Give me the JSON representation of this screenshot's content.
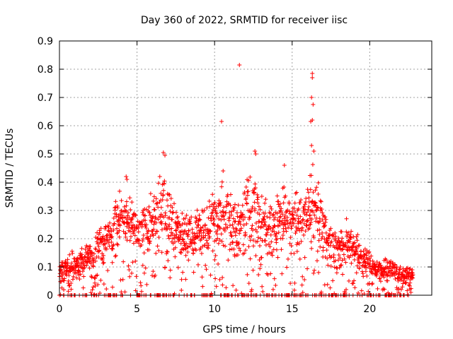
{
  "chart_data": {
    "type": "scatter",
    "title": "Day 360 of 2022, SRMTID for receiver iisc",
    "xlabel": "GPS time / hours",
    "ylabel": "SRMTID / TECUs",
    "xlim": [
      0,
      24
    ],
    "ylim": [
      0,
      0.9
    ],
    "xticks": [
      0,
      5,
      10,
      15,
      20
    ],
    "xtick_labels": [
      "0",
      "5",
      "10",
      "15",
      "20"
    ],
    "yticks": [
      0,
      0.1,
      0.2,
      0.3,
      0.4,
      0.5,
      0.6,
      0.7,
      0.8,
      0.9
    ],
    "ytick_labels": [
      "0",
      "0.1",
      "0.2",
      "0.3",
      "0.4",
      "0.5",
      "0.6",
      "0.7",
      "0.8",
      "0.9"
    ],
    "grid": true,
    "marker": "+",
    "series": [
      {
        "name": "SRMTID",
        "color": "#ff0000",
        "data_envelope": [
          {
            "x": 0.0,
            "y_typical": 0.06,
            "y_peak": 0.14
          },
          {
            "x": 1.0,
            "y_typical": 0.1,
            "y_peak": 0.17
          },
          {
            "x": 2.0,
            "y_typical": 0.13,
            "y_peak": 0.2
          },
          {
            "x": 3.0,
            "y_typical": 0.17,
            "y_peak": 0.3
          },
          {
            "x": 3.5,
            "y_typical": 0.2,
            "y_peak": 0.37
          },
          {
            "x": 4.0,
            "y_typical": 0.3,
            "y_peak": 0.42
          },
          {
            "x": 5.0,
            "y_typical": 0.25,
            "y_peak": 0.33
          },
          {
            "x": 6.0,
            "y_typical": 0.25,
            "y_peak": 0.39
          },
          {
            "x": 6.7,
            "y_typical": 0.3,
            "y_peak": 0.5
          },
          {
            "x": 7.5,
            "y_typical": 0.22,
            "y_peak": 0.34
          },
          {
            "x": 8.5,
            "y_typical": 0.2,
            "y_peak": 0.32
          },
          {
            "x": 9.5,
            "y_typical": 0.22,
            "y_peak": 0.36
          },
          {
            "x": 10.5,
            "y_typical": 0.22,
            "y_peak": 0.44
          },
          {
            "x": 11.5,
            "y_typical": 0.2,
            "y_peak": 0.38
          },
          {
            "x": 12.5,
            "y_typical": 0.22,
            "y_peak": 0.52
          },
          {
            "x": 13.5,
            "y_typical": 0.2,
            "y_peak": 0.34
          },
          {
            "x": 14.5,
            "y_typical": 0.22,
            "y_peak": 0.45
          },
          {
            "x": 15.5,
            "y_typical": 0.2,
            "y_peak": 0.4
          },
          {
            "x": 16.3,
            "y_typical": 0.25,
            "y_peak": 0.51
          },
          {
            "x": 17.5,
            "y_typical": 0.18,
            "y_peak": 0.28
          },
          {
            "x": 18.5,
            "y_typical": 0.18,
            "y_peak": 0.28
          },
          {
            "x": 19.5,
            "y_typical": 0.14,
            "y_peak": 0.2
          },
          {
            "x": 20.5,
            "y_typical": 0.08,
            "y_peak": 0.13
          },
          {
            "x": 21.5,
            "y_typical": 0.07,
            "y_peak": 0.15
          },
          {
            "x": 22.6,
            "y_typical": 0.05,
            "y_peak": 0.11
          }
        ],
        "zero_points_x_range": [
          0.0,
          22.8
        ],
        "outliers": [
          {
            "x": 11.6,
            "y": 0.815
          },
          {
            "x": 16.3,
            "y": 0.785
          },
          {
            "x": 16.3,
            "y": 0.77
          },
          {
            "x": 16.25,
            "y": 0.7
          },
          {
            "x": 16.35,
            "y": 0.675
          },
          {
            "x": 16.3,
            "y": 0.62
          },
          {
            "x": 16.2,
            "y": 0.615
          },
          {
            "x": 16.25,
            "y": 0.53
          },
          {
            "x": 16.4,
            "y": 0.51
          },
          {
            "x": 10.45,
            "y": 0.615
          },
          {
            "x": 12.6,
            "y": 0.51
          },
          {
            "x": 12.65,
            "y": 0.5
          },
          {
            "x": 6.7,
            "y": 0.505
          },
          {
            "x": 6.8,
            "y": 0.495
          },
          {
            "x": 14.5,
            "y": 0.46
          },
          {
            "x": 10.55,
            "y": 0.44
          },
          {
            "x": 4.3,
            "y": 0.42
          },
          {
            "x": 4.35,
            "y": 0.41
          }
        ],
        "x_end": 22.8
      }
    ]
  }
}
